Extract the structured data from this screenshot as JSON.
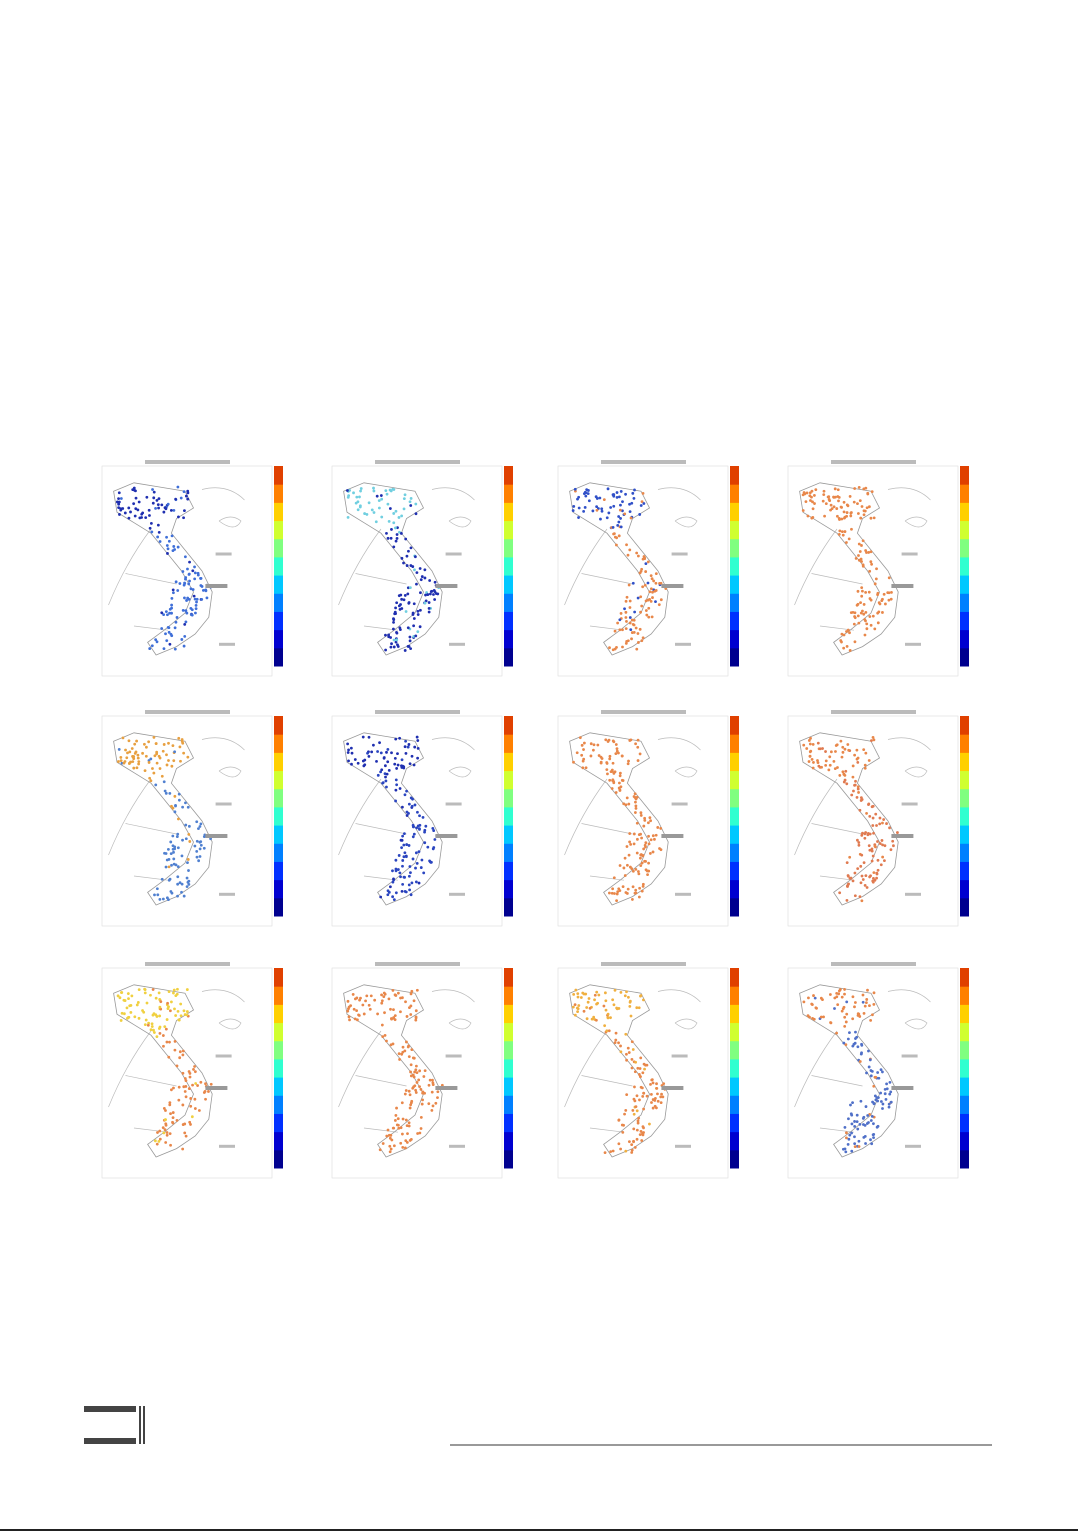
{
  "figure": {
    "colormap": [
      "#00008f",
      "#0000d0",
      "#0030ff",
      "#0080ff",
      "#00c8ff",
      "#30ffd0",
      "#80ff80",
      "#d0ff30",
      "#ffd000",
      "#ff8000",
      "#e04000"
    ],
    "panels": [
      {
        "north_color": "#1f2fb0",
        "south_color": "#3f6fd8"
      },
      {
        "north_color": "#70cfe0",
        "south_color": "#1f2fb0"
      },
      {
        "north_color": "#3050c8",
        "south_color": "#e8874a"
      },
      {
        "north_color": "#e8874a",
        "south_color": "#e8874a"
      },
      {
        "north_color": "#e8a040",
        "south_color": "#5080d0"
      },
      {
        "north_color": "#1f2fb0",
        "south_color": "#2a45c0"
      },
      {
        "north_color": "#e8874a",
        "south_color": "#e8874a"
      },
      {
        "north_color": "#e8874a",
        "south_color": "#e07a50"
      },
      {
        "north_color": "#f0d040",
        "south_color": "#e8874a"
      },
      {
        "north_color": "#e8874a",
        "south_color": "#e8874a"
      },
      {
        "north_color": "#f0b040",
        "south_color": "#e8874a"
      },
      {
        "north_color": "#e8874a",
        "south_color": "#5070c8"
      }
    ]
  }
}
